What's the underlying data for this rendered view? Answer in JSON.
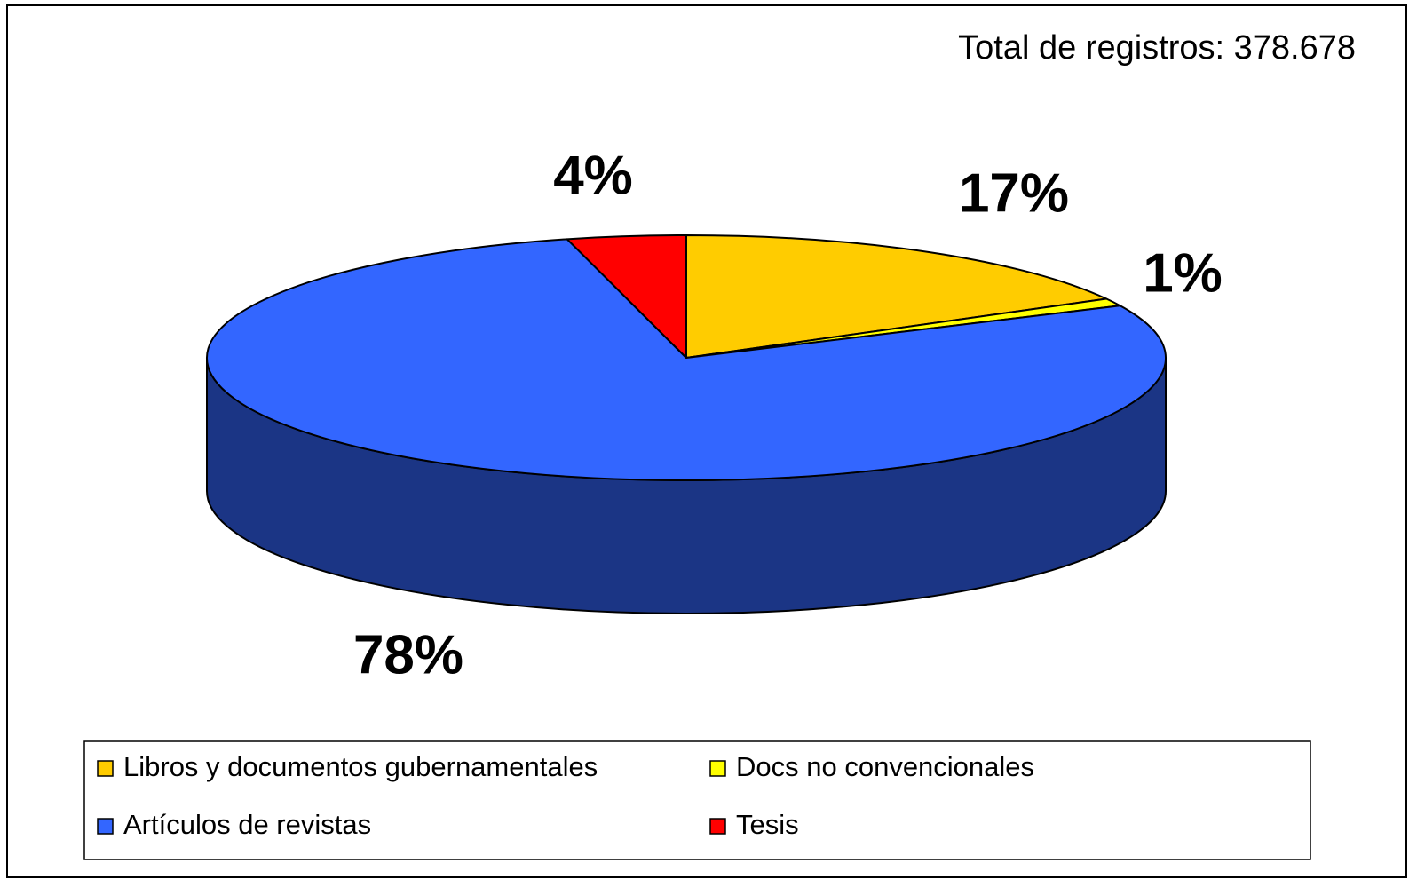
{
  "chart_data": {
    "type": "pie",
    "annotation": "Total de registros: 378.678",
    "categories": [
      "Libros y documentos gubernamentales",
      "Docs no convencionales",
      "Artículos de revistas",
      "Tesis"
    ],
    "values": [
      17,
      1,
      78,
      4
    ],
    "value_labels": [
      "17%",
      "1%",
      "78%",
      "4%"
    ],
    "colors": [
      "#ffcc00",
      "#ffff00",
      "#3366ff",
      "#ff0000"
    ],
    "legend": "bottom"
  }
}
